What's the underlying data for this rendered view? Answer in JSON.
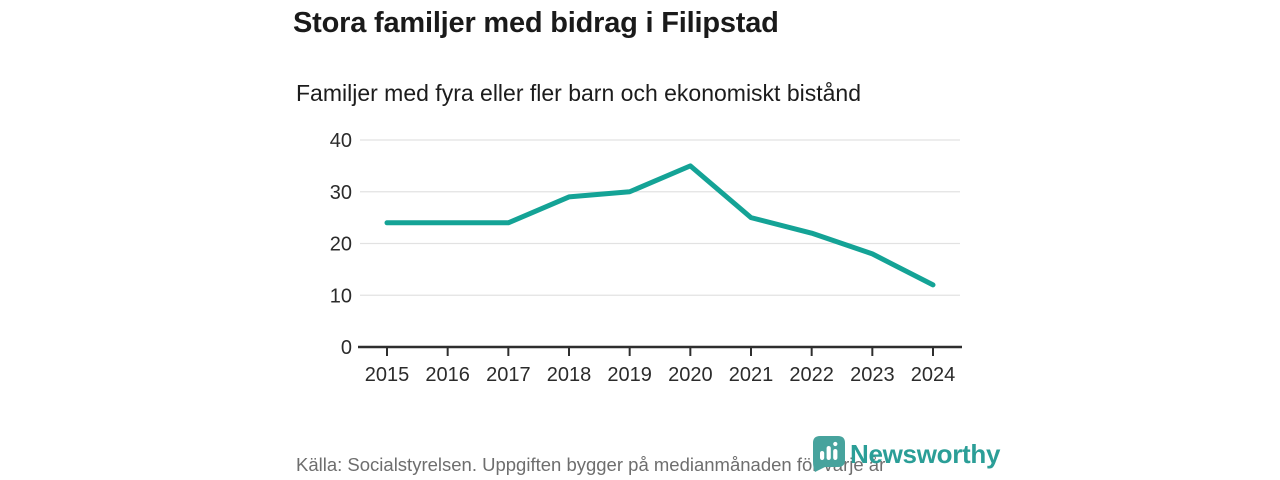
{
  "header": {
    "title": "Stora familjer med bidrag i Filipstad",
    "subtitle": "Familjer med fyra eller fler barn och ekonomiskt bistånd"
  },
  "chart_data": {
    "type": "line",
    "title": "Stora familjer med bidrag i Filipstad",
    "subtitle": "Familjer med fyra eller fler barn och ekonomiskt bistånd",
    "x": [
      2015,
      2016,
      2017,
      2018,
      2019,
      2020,
      2021,
      2022,
      2023,
      2024
    ],
    "values": [
      24,
      24,
      24,
      29,
      30,
      35,
      25,
      22,
      18,
      12
    ],
    "xlabel": "",
    "ylabel": "",
    "ylim": [
      0,
      40
    ],
    "yticks": [
      0,
      10,
      20,
      30,
      40
    ],
    "grid": "horizontal-only",
    "legend_position": "none",
    "line_color": "#14a396",
    "grid_color": "#e2e2e2",
    "axis_color": "#2e2e2e"
  },
  "footer": {
    "source": "Källa: Socialstyrelsen. Uppgiften bygger på medianmånaden för varje år",
    "logo_text": "Newsworthy"
  },
  "colors": {
    "accent_teal": "#14a396",
    "logo_teal": "#2b9e97",
    "title_text": "#1a1a1a",
    "footer_gray": "#6e6e6e",
    "grid_gray": "#e2e2e2",
    "axis_dark": "#2e2e2e"
  }
}
